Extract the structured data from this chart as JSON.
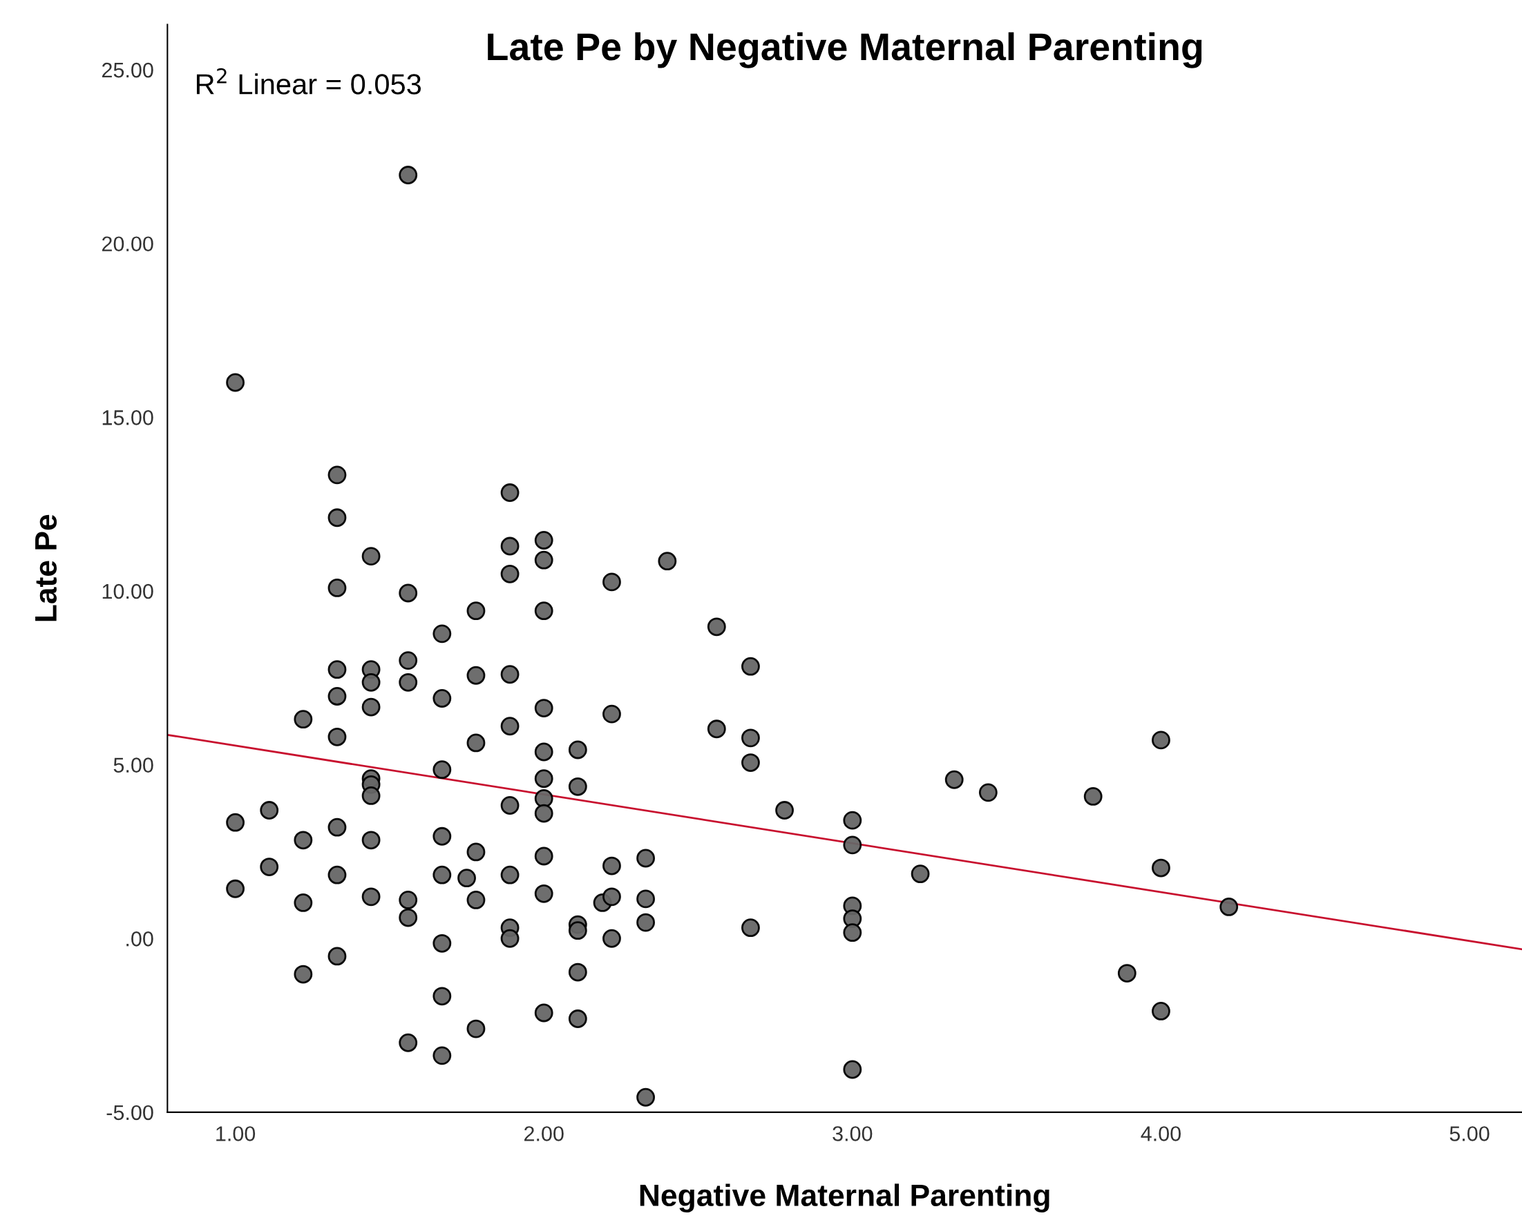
{
  "chart_data": {
    "type": "scatter",
    "title": "Late Pe by Negative Maternal Parenting",
    "xlabel": "Negative Maternal Parenting",
    "ylabel": "Late Pe",
    "annotations": [
      "R$^{2}$ Linear = 0.053"
    ],
    "xlim": [
      0.78,
      5.17
    ],
    "ylim": [
      -5,
      26.3
    ],
    "xticks": [
      {
        "value": 1,
        "label": "1.00"
      },
      {
        "value": 2,
        "label": "2.00"
      },
      {
        "value": 3,
        "label": "3.00"
      },
      {
        "value": 4,
        "label": "4.00"
      },
      {
        "value": 5,
        "label": "5.00"
      }
    ],
    "yticks": [
      {
        "value": -5,
        "label": "-5.00"
      },
      {
        "value": 0,
        "label": ".00"
      },
      {
        "value": 5,
        "label": "5.00"
      },
      {
        "value": 10,
        "label": "10.00"
      },
      {
        "value": 15,
        "label": "15.00"
      },
      {
        "value": 20,
        "label": "20.00"
      },
      {
        "value": 25,
        "label": "25.00"
      }
    ],
    "grid": false,
    "legend": false,
    "series": [
      {
        "marker": "circle",
        "color": "#666666",
        "x": [
          1.0,
          1.0,
          1.0,
          1.11,
          1.11,
          1.22,
          1.22,
          1.22,
          1.22,
          1.33,
          1.33,
          1.33,
          1.33,
          1.33,
          1.33,
          1.33,
          1.33,
          1.33,
          1.44,
          1.44,
          1.44,
          1.44,
          1.44,
          1.44,
          1.44,
          1.44,
          1.44,
          1.56,
          1.56,
          1.56,
          1.56,
          1.56,
          1.56,
          1.56,
          1.67,
          1.67,
          1.67,
          1.67,
          1.67,
          1.67,
          1.67,
          1.67,
          1.75,
          1.78,
          1.78,
          1.78,
          1.78,
          1.78,
          1.78,
          1.89,
          1.89,
          1.89,
          1.89,
          1.89,
          1.89,
          1.89,
          1.89,
          1.89,
          2.0,
          2.0,
          2.0,
          2.0,
          2.0,
          2.0,
          2.0,
          2.0,
          2.0,
          2.0,
          2.0,
          2.11,
          2.11,
          2.11,
          2.11,
          2.11,
          2.11,
          2.19,
          2.22,
          2.22,
          2.22,
          2.22,
          2.22,
          2.33,
          2.33,
          2.33,
          2.33,
          2.4,
          2.56,
          2.56,
          2.67,
          2.67,
          2.67,
          2.67,
          2.78,
          3.0,
          3.0,
          3.0,
          3.0,
          3.0,
          3.0,
          3.22,
          3.33,
          3.44,
          3.78,
          3.89,
          4.0,
          4.0,
          4.0,
          4.22
        ],
        "values": [
          16.0,
          3.34,
          1.43,
          3.69,
          2.06,
          6.31,
          2.83,
          1.03,
          -1.03,
          13.34,
          12.11,
          10.09,
          7.74,
          6.97,
          5.8,
          3.2,
          1.83,
          -0.51,
          11.0,
          7.74,
          7.37,
          6.66,
          4.6,
          4.43,
          4.11,
          2.83,
          1.2,
          21.97,
          9.94,
          8.0,
          7.37,
          1.11,
          0.6,
          -3.0,
          8.77,
          6.91,
          4.86,
          2.94,
          1.83,
          -0.14,
          -1.66,
          -3.37,
          1.74,
          9.43,
          7.57,
          5.63,
          2.49,
          1.11,
          -2.6,
          12.83,
          11.29,
          10.49,
          7.6,
          6.11,
          3.83,
          1.83,
          0.31,
          0.0,
          11.46,
          10.89,
          9.43,
          6.63,
          5.37,
          4.6,
          4.03,
          3.6,
          2.37,
          1.29,
          -2.14,
          5.43,
          4.37,
          0.4,
          0.23,
          -0.97,
          -2.31,
          1.03,
          10.26,
          6.46,
          2.09,
          1.2,
          0.0,
          2.31,
          1.14,
          0.46,
          -4.57,
          10.86,
          8.97,
          6.03,
          7.83,
          5.77,
          5.06,
          0.31,
          3.69,
          3.4,
          2.69,
          0.94,
          0.57,
          0.17,
          -3.77,
          1.86,
          4.57,
          4.2,
          4.09,
          -1.0,
          5.71,
          2.03,
          -2.09,
          0.91
        ]
      },
      {
        "type": "line",
        "marker": "none",
        "color": "#c8102e",
        "x": [
          0.78,
          5.17
        ],
        "values": [
          5.86,
          -0.31
        ]
      }
    ]
  }
}
